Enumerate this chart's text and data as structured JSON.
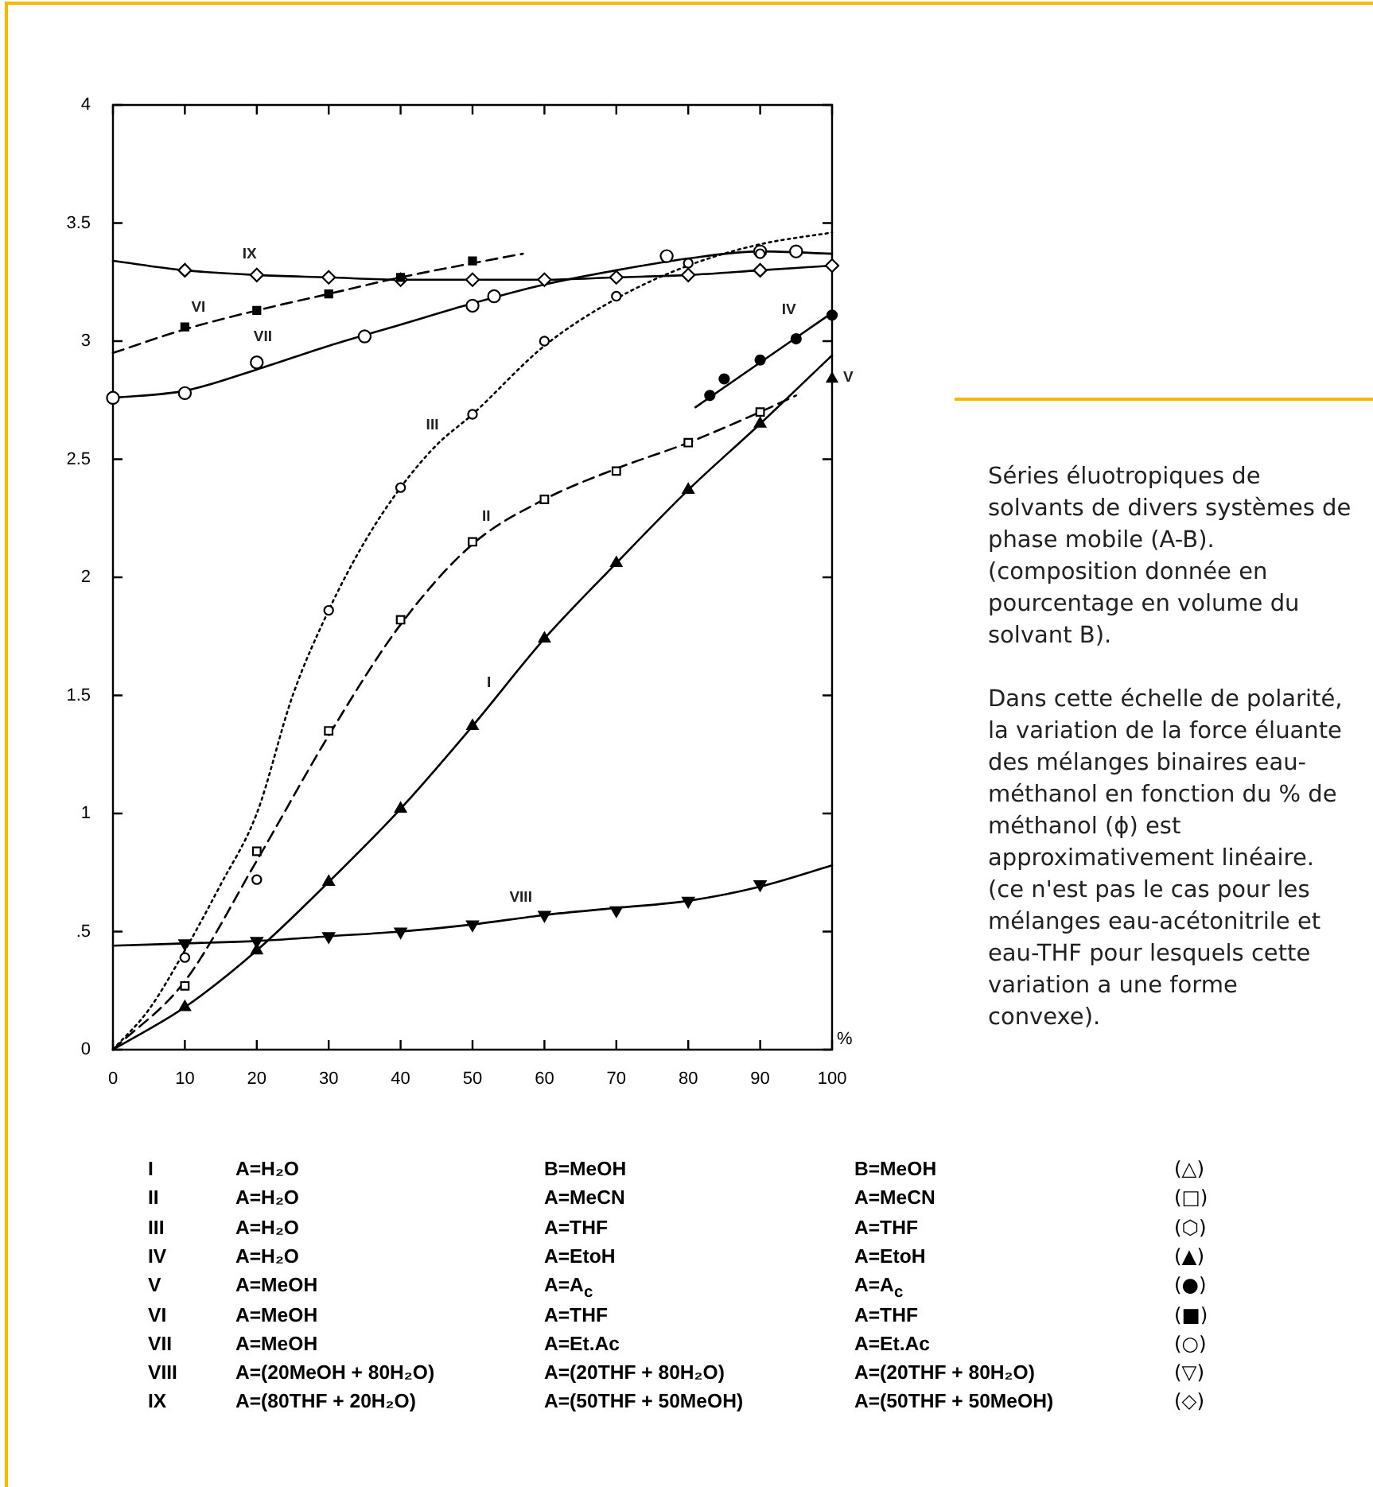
{
  "chart_data": {
    "type": "line",
    "xlabel": "%",
    "xlim": [
      0,
      100
    ],
    "xticks": [
      0,
      10,
      20,
      30,
      40,
      50,
      60,
      70,
      80,
      90,
      100
    ],
    "ylim": [
      0,
      4
    ],
    "yticks": [
      0,
      {
        "value": 0.5,
        "label": ".5"
      },
      1,
      1.5,
      2,
      2.5,
      3,
      3.5,
      4
    ],
    "series": [
      {
        "type": "line",
        "color": "#000000",
        "line_style": "solid",
        "marker": "none",
        "x": [
          0,
          10,
          20,
          30,
          40,
          50,
          60,
          70,
          80,
          90,
          100
        ],
        "values": [
          0,
          0.18,
          0.42,
          0.71,
          1.02,
          1.37,
          1.74,
          2.06,
          2.37,
          2.65,
          2.94
        ]
      },
      {
        "type": "scatter",
        "name": "I",
        "color": "#000000",
        "marker": "triangle",
        "x": [
          10,
          20,
          30,
          40,
          50,
          60,
          70,
          80,
          90
        ],
        "values": [
          0.18,
          0.42,
          0.71,
          1.02,
          1.37,
          1.74,
          2.06,
          2.37,
          2.65
        ]
      },
      {
        "type": "line",
        "color": "#000000",
        "line_style": "dashed",
        "marker": "none",
        "x": [
          0,
          10,
          20,
          30,
          40,
          50,
          60,
          70,
          80,
          90,
          95
        ],
        "values": [
          0,
          0.29,
          0.8,
          1.33,
          1.8,
          2.14,
          2.33,
          2.46,
          2.57,
          2.7,
          2.77
        ]
      },
      {
        "type": "scatter",
        "name": "II",
        "color": "#000000",
        "marker": "square",
        "x": [
          10,
          20,
          30,
          40,
          50,
          60,
          70,
          80,
          90
        ],
        "values": [
          0.27,
          0.84,
          1.35,
          1.82,
          2.15,
          2.33,
          2.45,
          2.57,
          2.7
        ]
      },
      {
        "type": "line",
        "color": "#000000",
        "line_style": "dotted",
        "marker": "none",
        "x": [
          0,
          5,
          10,
          15,
          20,
          25,
          30,
          35,
          40,
          45,
          50,
          60,
          70,
          80,
          90,
          100
        ],
        "values": [
          0,
          0.17,
          0.42,
          0.7,
          1.0,
          1.5,
          1.86,
          2.15,
          2.38,
          2.56,
          2.69,
          2.98,
          3.18,
          3.32,
          3.41,
          3.46
        ]
      },
      {
        "type": "scatter",
        "name": "III",
        "color": "#000000",
        "marker": "circle",
        "x": [
          10,
          20,
          30,
          40,
          50,
          60,
          70,
          80,
          90
        ],
        "values": [
          0.39,
          0.72,
          1.86,
          2.38,
          2.69,
          3.0,
          3.19,
          3.33,
          3.37
        ]
      },
      {
        "type": "line",
        "color": "#000000",
        "line_style": "solid",
        "marker": "none",
        "x": [
          81,
          100
        ],
        "values": [
          2.72,
          3.12
        ]
      },
      {
        "type": "scatter",
        "name": "IV",
        "color": "#000000",
        "marker": "circle",
        "x": [
          83,
          85,
          90,
          95,
          100
        ],
        "values": [
          2.77,
          2.84,
          2.92,
          3.01,
          3.11
        ]
      },
      {
        "type": "scatter",
        "name": "V",
        "color": "#000000",
        "marker": "triangle",
        "x": [
          100
        ],
        "values": [
          2.84
        ]
      },
      {
        "type": "line",
        "color": "#000000",
        "line_style": "dashed",
        "marker": "none",
        "x": [
          0,
          10,
          20,
          30,
          40,
          50,
          57
        ],
        "values": [
          2.95,
          3.05,
          3.13,
          3.2,
          3.27,
          3.33,
          3.37
        ]
      },
      {
        "type": "scatter",
        "name": "VI",
        "color": "#000000",
        "marker": "square",
        "x": [
          10,
          20,
          30,
          40,
          50
        ],
        "values": [
          3.06,
          3.13,
          3.2,
          3.27,
          3.34
        ]
      },
      {
        "type": "line",
        "color": "#000000",
        "line_style": "solid",
        "marker": "none",
        "x": [
          0,
          10,
          20,
          30,
          40,
          50,
          60,
          70,
          80,
          90,
          100
        ],
        "values": [
          2.76,
          2.79,
          2.88,
          2.98,
          3.07,
          3.16,
          3.24,
          3.3,
          3.35,
          3.38,
          3.37
        ]
      },
      {
        "type": "scatter",
        "name": "VII",
        "color": "#000000",
        "marker": "circle",
        "x": [
          0,
          10,
          20,
          35,
          50,
          53,
          77,
          90,
          95
        ],
        "values": [
          2.76,
          2.78,
          2.91,
          3.02,
          3.15,
          3.19,
          3.36,
          3.38,
          3.38
        ]
      },
      {
        "type": "line",
        "color": "#000000",
        "line_style": "solid",
        "marker": "none",
        "x": [
          0,
          10,
          20,
          30,
          40,
          50,
          60,
          70,
          80,
          90,
          100
        ],
        "values": [
          0.44,
          0.45,
          0.46,
          0.48,
          0.5,
          0.53,
          0.57,
          0.6,
          0.63,
          0.69,
          0.78
        ]
      },
      {
        "type": "scatter",
        "name": "VIII",
        "color": "#000000",
        "marker": "triangle-down",
        "x": [
          10,
          20,
          30,
          40,
          50,
          60,
          70,
          80,
          90
        ],
        "values": [
          0.45,
          0.46,
          0.48,
          0.5,
          0.53,
          0.57,
          0.59,
          0.63,
          0.7
        ]
      },
      {
        "type": "line",
        "color": "#000000",
        "line_style": "solid",
        "marker": "none",
        "x": [
          0,
          10,
          20,
          30,
          40,
          50,
          60,
          70,
          80,
          90,
          100
        ],
        "values": [
          3.34,
          3.3,
          3.28,
          3.27,
          3.26,
          3.26,
          3.26,
          3.27,
          3.28,
          3.3,
          3.32
        ]
      },
      {
        "type": "scatter",
        "name": "IX",
        "color": "#000000",
        "marker": "diamond",
        "x": [
          10,
          20,
          30,
          40,
          50,
          60,
          70,
          80,
          90,
          100
        ],
        "values": [
          3.3,
          3.28,
          3.27,
          3.26,
          3.26,
          3.26,
          3.27,
          3.28,
          3.3,
          3.32
        ]
      }
    ],
    "annotations": [
      "Séries éluotropiques de solvants de divers systèmes de phase mobile (A-B).",
      "(composition donnée en pourcentage en volume du solvant B).",
      "Dans cette échelle de polarité, la variation de la force éluante des mélanges binaires eau-méthanol en fonction du % de méthanol (ϕ) est approximativement linéaire.",
      "(ce n'est pas le cas pour les mélanges eau-acétonitrile et eau-THF pour lesquels cette variation a une forme convexe).",
      "A=H₂O",
      "B=MeOH",
      "B=MeOH",
      "(△)",
      "A=H₂O",
      "A=MeCN",
      "A=MeCN",
      "(□)",
      "A=H₂O",
      "A=THF",
      "A=THF",
      "(⬡)",
      "A=H₂O",
      "A=EtoH",
      "A=EtoH",
      "(▲)",
      "A=MeOH",
      "A=A$_{c}$",
      "A=A$_{c}$",
      "(●)",
      "A=MeOH",
      "A=THF",
      "A=THF",
      "(■)",
      "A=MeOH",
      "A=Et.Ac",
      "A=Et.Ac",
      "(○)",
      "A=(20MeOH + 80H₂O)",
      "A=(20THF + 80H₂O)",
      "A=(20THF + 80H₂O)",
      "(▽)",
      "A=(80THF + 20H₂O)",
      "A=(50THF + 50MeOH)",
      "A=(50THF + 50MeOH)",
      "(◇)"
    ]
  }
}
